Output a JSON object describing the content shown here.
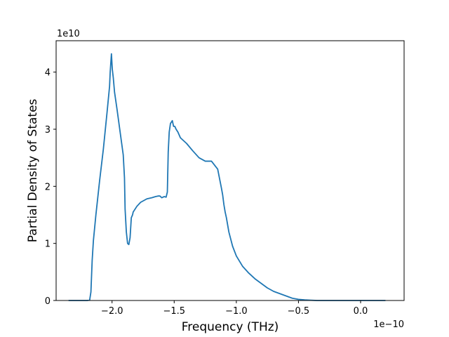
{
  "chart_data": {
    "type": "line",
    "title": "",
    "xlabel": "Frequency (THz)",
    "ylabel": "Partial Density of States",
    "x_offset_label": "1e−10",
    "y_offset_label": "1e10",
    "xlim": [
      -2.45,
      0.35
    ],
    "ylim": [
      0,
      4.55
    ],
    "xticks": [
      -2.0,
      -1.5,
      -1.0,
      -0.5,
      0.0
    ],
    "xtick_labels": [
      "−2.0",
      "−1.5",
      "−1.0",
      "−0.5",
      "0.0"
    ],
    "yticks": [
      0,
      1,
      2,
      3,
      4
    ],
    "ytick_labels": [
      "0",
      "1",
      "2",
      "3",
      "4"
    ],
    "grid": false,
    "legend": "none",
    "series_color": "#1f77b4",
    "series": [
      {
        "x": [
          -2.35,
          -2.26,
          -2.2,
          -2.18,
          -2.17,
          -2.16,
          -2.15,
          -2.13,
          -2.1,
          -2.07,
          -2.04,
          -2.02,
          -2.015,
          -2.005,
          -1.998,
          -1.99,
          -1.98,
          -1.96,
          -1.935,
          -1.91,
          -1.9,
          -1.895,
          -1.885,
          -1.875,
          -1.865,
          -1.855,
          -1.845,
          -1.835,
          -1.83,
          -1.8,
          -1.77,
          -1.72,
          -1.68,
          -1.65,
          -1.63,
          -1.615,
          -1.6,
          -1.59,
          -1.58,
          -1.565,
          -1.555,
          -1.548,
          -1.54,
          -1.53,
          -1.515,
          -1.505,
          -1.495,
          -1.485,
          -1.47,
          -1.45,
          -1.4,
          -1.35,
          -1.3,
          -1.25,
          -1.2,
          -1.15,
          -1.12,
          -1.11,
          -1.1,
          -1.09,
          -1.08,
          -1.06,
          -1.03,
          -1.0,
          -0.95,
          -0.9,
          -0.85,
          -0.8,
          -0.75,
          -0.7,
          -0.65,
          -0.6,
          -0.55,
          -0.5,
          -0.45,
          -0.4,
          -0.35,
          -0.3,
          -0.25,
          -0.2,
          -0.15,
          -0.1,
          -0.05,
          0.0,
          0.05,
          0.1,
          0.15,
          0.2
        ],
        "y": [
          0.0,
          0.0,
          0.0,
          0.01,
          0.15,
          0.7,
          1.05,
          1.5,
          2.1,
          2.65,
          3.3,
          3.75,
          4.0,
          4.32,
          4.05,
          3.9,
          3.65,
          3.35,
          2.95,
          2.55,
          2.15,
          1.6,
          1.2,
          1.0,
          0.98,
          1.1,
          1.45,
          1.5,
          1.55,
          1.65,
          1.72,
          1.78,
          1.8,
          1.82,
          1.83,
          1.83,
          1.8,
          1.81,
          1.82,
          1.81,
          1.9,
          2.6,
          2.95,
          3.1,
          3.15,
          3.05,
          3.05,
          3.0,
          2.95,
          2.85,
          2.75,
          2.62,
          2.5,
          2.44,
          2.44,
          2.3,
          1.97,
          1.85,
          1.68,
          1.55,
          1.45,
          1.2,
          0.95,
          0.78,
          0.6,
          0.48,
          0.38,
          0.3,
          0.22,
          0.16,
          0.12,
          0.08,
          0.04,
          0.02,
          0.01,
          0.005,
          0.0,
          0.0,
          0.0,
          0.0,
          0.0,
          0.0,
          0.0,
          0.0,
          0.0,
          0.0,
          0.0,
          0.0
        ]
      }
    ]
  }
}
